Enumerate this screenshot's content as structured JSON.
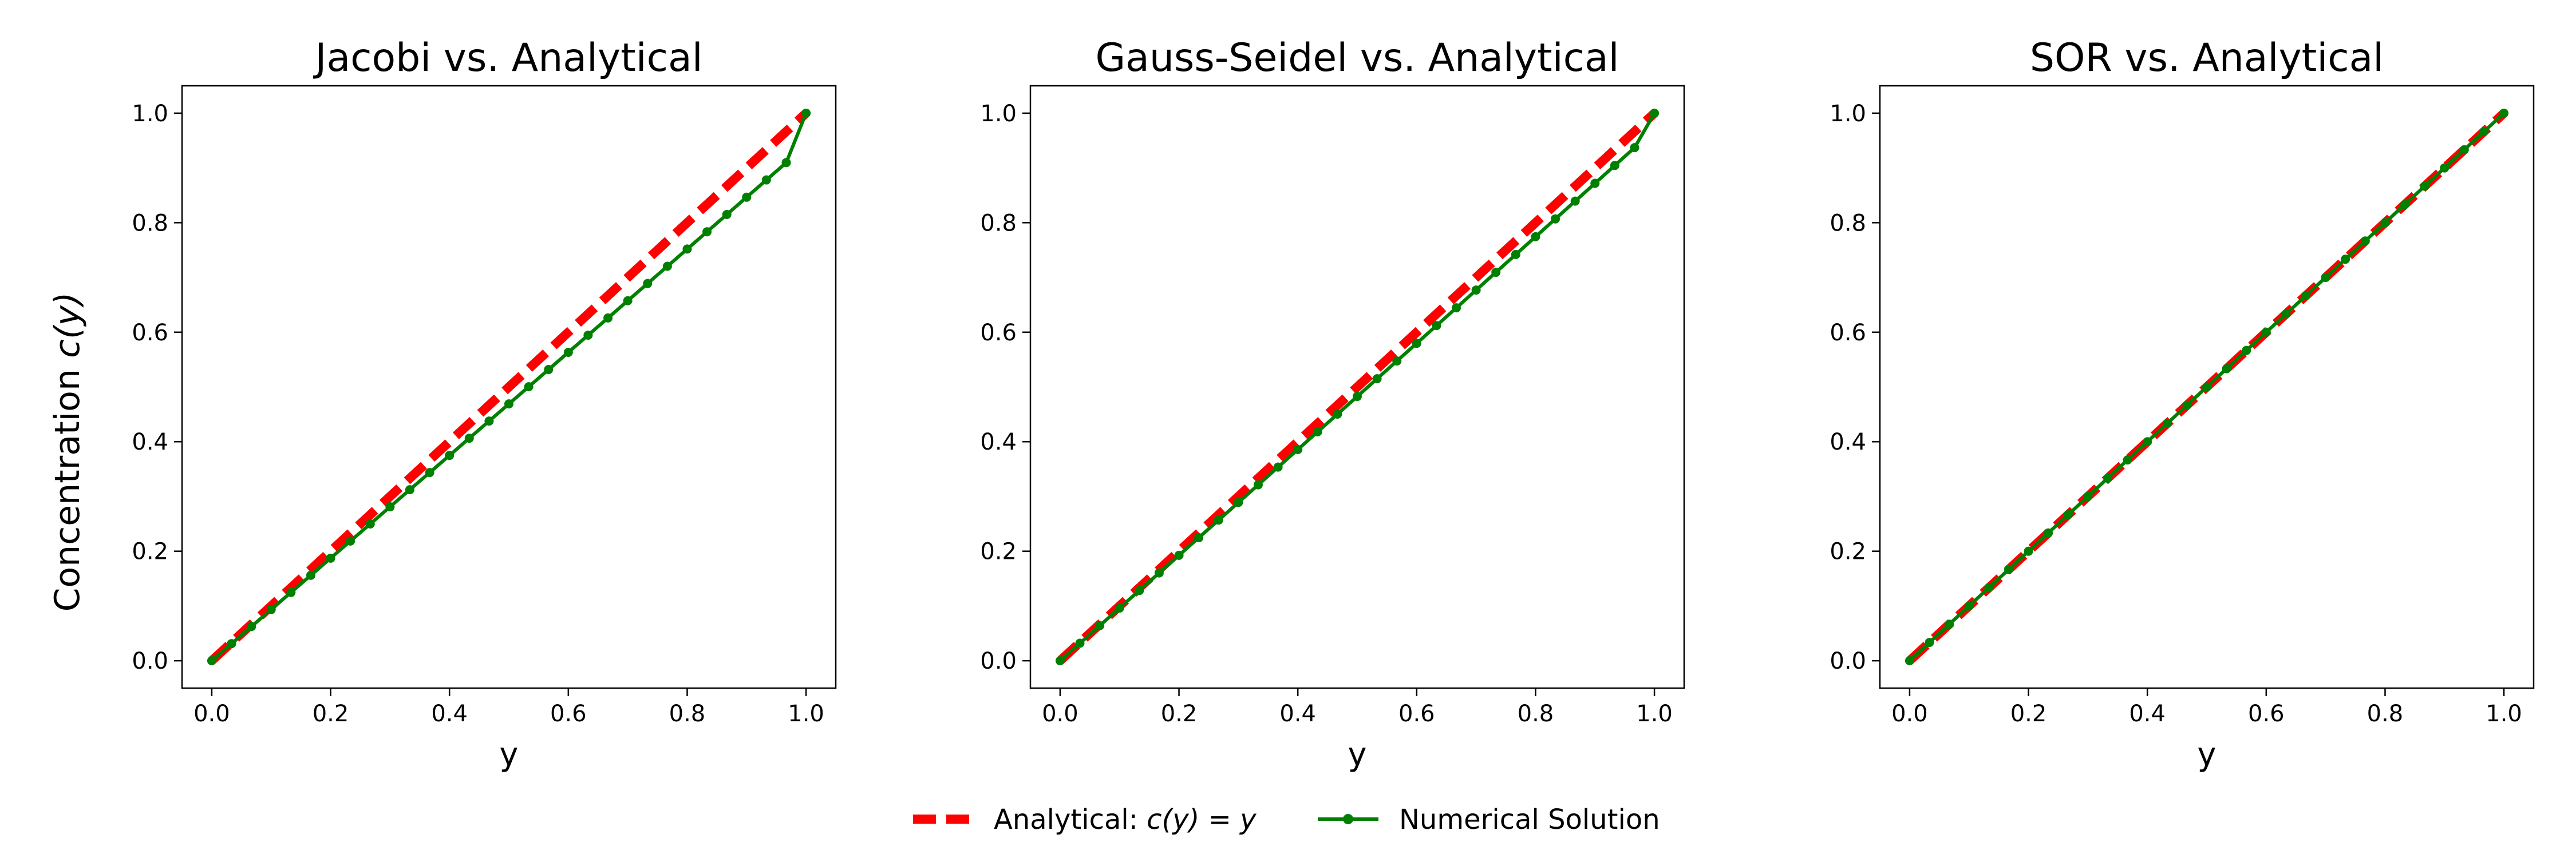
{
  "figure": {
    "ylabel": "Concentration",
    "ylabel_math": "c(y)",
    "legend": [
      {
        "text": "Analytical:",
        "math": "c(y) = y",
        "color": "#ff0000",
        "style": "dashed"
      },
      {
        "text": "Numerical Solution",
        "color": "#008000",
        "style": "solid-marker"
      }
    ]
  },
  "chart_data": [
    {
      "type": "line",
      "title": "Jacobi vs. Analytical",
      "xlabel": "y",
      "ylabel": "Concentration c(y)",
      "xlim": [
        -0.05,
        1.05
      ],
      "ylim": [
        -0.05,
        1.05
      ],
      "xticks": [
        "0.0",
        "0.2",
        "0.4",
        "0.6",
        "0.8",
        "1.0"
      ],
      "yticks": [
        "0.0",
        "0.2",
        "0.4",
        "0.6",
        "0.8",
        "1.0"
      ],
      "grid": false,
      "series": [
        {
          "name": "Analytical: c(y) = y",
          "color": "#ff0000",
          "x": [
            0.0,
            1.0
          ],
          "y": [
            0.0,
            1.0
          ]
        },
        {
          "name": "Numerical Solution",
          "color": "#008000",
          "x": [
            0.0,
            0.0333,
            0.0667,
            0.1,
            0.1333,
            0.1667,
            0.2,
            0.2333,
            0.2667,
            0.3,
            0.3333,
            0.3667,
            0.4,
            0.4333,
            0.4667,
            0.5,
            0.5333,
            0.5667,
            0.6,
            0.6333,
            0.6667,
            0.7,
            0.7333,
            0.7667,
            0.8,
            0.8333,
            0.8667,
            0.9,
            0.9333,
            0.9667,
            1.0
          ],
          "y": [
            0.0,
            0.0312,
            0.0624,
            0.0936,
            0.1248,
            0.1561,
            0.1873,
            0.2186,
            0.2498,
            0.2811,
            0.3124,
            0.3437,
            0.375,
            0.4064,
            0.4377,
            0.4691,
            0.5004,
            0.5318,
            0.5632,
            0.5946,
            0.626,
            0.6575,
            0.6889,
            0.7204,
            0.7519,
            0.7834,
            0.815,
            0.8465,
            0.8781,
            0.9097,
            1.0
          ]
        }
      ]
    },
    {
      "type": "line",
      "title": "Gauss-Seidel vs. Analytical",
      "xlabel": "y",
      "ylabel": "",
      "xlim": [
        -0.05,
        1.05
      ],
      "ylim": [
        -0.05,
        1.05
      ],
      "xticks": [
        "0.0",
        "0.2",
        "0.4",
        "0.6",
        "0.8",
        "1.0"
      ],
      "yticks": [
        "0.0",
        "0.2",
        "0.4",
        "0.6",
        "0.8",
        "1.0"
      ],
      "grid": false,
      "series": [
        {
          "name": "Analytical: c(y) = y",
          "color": "#ff0000",
          "x": [
            0.0,
            1.0
          ],
          "y": [
            0.0,
            1.0
          ]
        },
        {
          "name": "Numerical Solution",
          "color": "#008000",
          "x": [
            0.0,
            0.0333,
            0.0667,
            0.1,
            0.1333,
            0.1667,
            0.2,
            0.2333,
            0.2667,
            0.3,
            0.3333,
            0.3667,
            0.4,
            0.4333,
            0.4667,
            0.5,
            0.5333,
            0.5667,
            0.6,
            0.6333,
            0.6667,
            0.7,
            0.7333,
            0.7667,
            0.8,
            0.8333,
            0.8667,
            0.9,
            0.9333,
            0.9667,
            1.0
          ],
          "y": [
            0.0,
            0.032,
            0.0641,
            0.0962,
            0.1283,
            0.1604,
            0.1925,
            0.2247,
            0.2569,
            0.2891,
            0.3213,
            0.3536,
            0.3858,
            0.4181,
            0.4504,
            0.4827,
            0.515,
            0.5474,
            0.5797,
            0.6121,
            0.6445,
            0.677,
            0.7094,
            0.7419,
            0.7744,
            0.8069,
            0.8394,
            0.8719,
            0.9045,
            0.9371,
            1.0
          ]
        }
      ]
    },
    {
      "type": "line",
      "title": "SOR vs. Analytical",
      "xlabel": "y",
      "ylabel": "",
      "xlim": [
        -0.05,
        1.05
      ],
      "ylim": [
        -0.05,
        1.05
      ],
      "xticks": [
        "0.0",
        "0.2",
        "0.4",
        "0.6",
        "0.8",
        "1.0"
      ],
      "yticks": [
        "0.0",
        "0.2",
        "0.4",
        "0.6",
        "0.8",
        "1.0"
      ],
      "grid": false,
      "series": [
        {
          "name": "Analytical: c(y) = y",
          "color": "#ff0000",
          "x": [
            0.0,
            1.0
          ],
          "y": [
            0.0,
            1.0
          ]
        },
        {
          "name": "Numerical Solution",
          "color": "#008000",
          "x": [
            0.0,
            0.0333,
            0.0667,
            0.1,
            0.1333,
            0.1667,
            0.2,
            0.2333,
            0.2667,
            0.3,
            0.3333,
            0.3667,
            0.4,
            0.4333,
            0.4667,
            0.5,
            0.5333,
            0.5667,
            0.6,
            0.6333,
            0.6667,
            0.7,
            0.7333,
            0.7667,
            0.8,
            0.8333,
            0.8667,
            0.9,
            0.9333,
            0.9667,
            1.0
          ],
          "y": [
            0.0,
            0.0333,
            0.0667,
            0.1,
            0.1333,
            0.1667,
            0.2,
            0.2333,
            0.2667,
            0.3,
            0.3333,
            0.3667,
            0.4,
            0.4333,
            0.4667,
            0.5,
            0.5333,
            0.5667,
            0.6,
            0.6333,
            0.6667,
            0.7,
            0.7333,
            0.7667,
            0.8,
            0.8333,
            0.8667,
            0.9,
            0.9333,
            0.9667,
            1.0
          ]
        }
      ]
    }
  ]
}
